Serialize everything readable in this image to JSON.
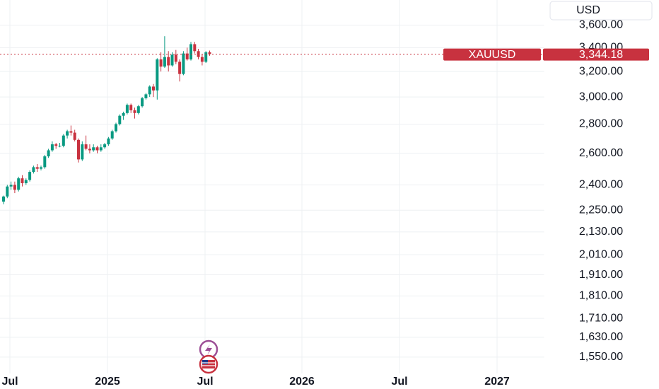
{
  "chart_data": {
    "type": "candlestick",
    "symbol": "XAUUSD",
    "currency": "USD",
    "log_scale": true,
    "grid": true,
    "up_color": "#089981",
    "down_color": "#c8323f",
    "ylim": [
      1495,
      3837
    ],
    "yticks": [
      {
        "value": 3600,
        "label": "3,600.00"
      },
      {
        "value": 3400,
        "label": "3,400.00"
      },
      {
        "value": 3200,
        "label": "3,200.00"
      },
      {
        "value": 3000,
        "label": "3,000.00"
      },
      {
        "value": 2800,
        "label": "2,800.00"
      },
      {
        "value": 2600,
        "label": "2,600.00"
      },
      {
        "value": 2400,
        "label": "2,400.00"
      },
      {
        "value": 2250,
        "label": "2,250.00"
      },
      {
        "value": 2130,
        "label": "2,130.00"
      },
      {
        "value": 2010,
        "label": "2,010.00"
      },
      {
        "value": 1910,
        "label": "1,910.00"
      },
      {
        "value": 1810,
        "label": "1,810.00"
      },
      {
        "value": 1710,
        "label": "1,710.00"
      },
      {
        "value": 1630,
        "label": "1,630.00"
      },
      {
        "value": 1550,
        "label": "1,550.00"
      }
    ],
    "x_labels": [
      "Jul",
      "2025",
      "Jul",
      "2026",
      "Jul",
      "2027"
    ],
    "last_price": {
      "value": 3344.18,
      "label": "3,344.18"
    },
    "candles": [
      {
        "o": 2300,
        "h": 2335,
        "l": 2285,
        "c": 2330
      },
      {
        "o": 2330,
        "h": 2400,
        "l": 2320,
        "c": 2390
      },
      {
        "o": 2390,
        "h": 2420,
        "l": 2370,
        "c": 2400
      },
      {
        "o": 2400,
        "h": 2420,
        "l": 2350,
        "c": 2370
      },
      {
        "o": 2370,
        "h": 2450,
        "l": 2360,
        "c": 2440
      },
      {
        "o": 2440,
        "h": 2460,
        "l": 2390,
        "c": 2410
      },
      {
        "o": 2410,
        "h": 2440,
        "l": 2400,
        "c": 2430
      },
      {
        "o": 2430,
        "h": 2490,
        "l": 2420,
        "c": 2480
      },
      {
        "o": 2480,
        "h": 2520,
        "l": 2470,
        "c": 2510
      },
      {
        "o": 2510,
        "h": 2530,
        "l": 2480,
        "c": 2500
      },
      {
        "o": 2500,
        "h": 2520,
        "l": 2490,
        "c": 2510
      },
      {
        "o": 2510,
        "h": 2590,
        "l": 2500,
        "c": 2580
      },
      {
        "o": 2580,
        "h": 2630,
        "l": 2570,
        "c": 2620
      },
      {
        "o": 2620,
        "h": 2680,
        "l": 2610,
        "c": 2660
      },
      {
        "o": 2660,
        "h": 2670,
        "l": 2630,
        "c": 2650
      },
      {
        "o": 2650,
        "h": 2670,
        "l": 2640,
        "c": 2650
      },
      {
        "o": 2650,
        "h": 2730,
        "l": 2640,
        "c": 2720
      },
      {
        "o": 2720,
        "h": 2760,
        "l": 2700,
        "c": 2750
      },
      {
        "o": 2750,
        "h": 2790,
        "l": 2720,
        "c": 2740
      },
      {
        "o": 2740,
        "h": 2760,
        "l": 2680,
        "c": 2690
      },
      {
        "o": 2690,
        "h": 2700,
        "l": 2540,
        "c": 2560
      },
      {
        "o": 2560,
        "h": 2680,
        "l": 2550,
        "c": 2660
      },
      {
        "o": 2660,
        "h": 2720,
        "l": 2620,
        "c": 2630
      },
      {
        "o": 2630,
        "h": 2660,
        "l": 2600,
        "c": 2620
      },
      {
        "o": 2620,
        "h": 2660,
        "l": 2610,
        "c": 2640
      },
      {
        "o": 2640,
        "h": 2650,
        "l": 2600,
        "c": 2620
      },
      {
        "o": 2620,
        "h": 2660,
        "l": 2610,
        "c": 2640
      },
      {
        "o": 2640,
        "h": 2670,
        "l": 2630,
        "c": 2660
      },
      {
        "o": 2660,
        "h": 2710,
        "l": 2650,
        "c": 2700
      },
      {
        "o": 2700,
        "h": 2760,
        "l": 2690,
        "c": 2750
      },
      {
        "o": 2750,
        "h": 2810,
        "l": 2740,
        "c": 2800
      },
      {
        "o": 2800,
        "h": 2870,
        "l": 2790,
        "c": 2860
      },
      {
        "o": 2860,
        "h": 2890,
        "l": 2830,
        "c": 2880
      },
      {
        "o": 2880,
        "h": 2950,
        "l": 2870,
        "c": 2940
      },
      {
        "o": 2940,
        "h": 2950,
        "l": 2880,
        "c": 2900
      },
      {
        "o": 2900,
        "h": 2920,
        "l": 2840,
        "c": 2880
      },
      {
        "o": 2880,
        "h": 2940,
        "l": 2870,
        "c": 2930
      },
      {
        "o": 2930,
        "h": 3000,
        "l": 2920,
        "c": 2990
      },
      {
        "o": 2990,
        "h": 3030,
        "l": 2980,
        "c": 3020
      },
      {
        "o": 3020,
        "h": 3090,
        "l": 3000,
        "c": 3080
      },
      {
        "o": 3080,
        "h": 3100,
        "l": 3000,
        "c": 3050
      },
      {
        "o": 3050,
        "h": 3310,
        "l": 2980,
        "c": 3300
      },
      {
        "o": 3300,
        "h": 3360,
        "l": 3200,
        "c": 3240
      },
      {
        "o": 3240,
        "h": 3500,
        "l": 3230,
        "c": 3320
      },
      {
        "o": 3320,
        "h": 3370,
        "l": 3200,
        "c": 3250
      },
      {
        "o": 3250,
        "h": 3360,
        "l": 3240,
        "c": 3340
      },
      {
        "o": 3340,
        "h": 3380,
        "l": 3260,
        "c": 3280
      },
      {
        "o": 3280,
        "h": 3300,
        "l": 3120,
        "c": 3180
      },
      {
        "o": 3180,
        "h": 3370,
        "l": 3170,
        "c": 3350
      },
      {
        "o": 3350,
        "h": 3400,
        "l": 3290,
        "c": 3300
      },
      {
        "o": 3300,
        "h": 3450,
        "l": 3290,
        "c": 3430
      },
      {
        "o": 3430,
        "h": 3450,
        "l": 3350,
        "c": 3370
      },
      {
        "o": 3370,
        "h": 3390,
        "l": 3300,
        "c": 3320
      },
      {
        "o": 3320,
        "h": 3340,
        "l": 3250,
        "c": 3280
      },
      {
        "o": 3280,
        "h": 3370,
        "l": 3270,
        "c": 3360
      },
      {
        "o": 3360,
        "h": 3375,
        "l": 3330,
        "c": 3344.18
      }
    ]
  }
}
